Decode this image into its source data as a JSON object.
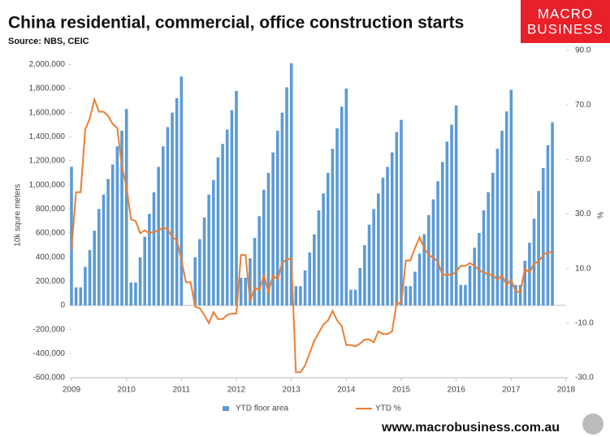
{
  "chart_data": {
    "type": "bar",
    "title": "China residential, commercial, office construction starts",
    "subtitle": "Source: NBS, CEIC",
    "logo": [
      "MACRO",
      "BUSINESS"
    ],
    "footer": "www.macrobusiness.com.au",
    "y_label": "10k squre meters",
    "y2_label": "%",
    "x": [
      2009,
      2009.0833,
      2009.1667,
      2009.25,
      2009.3333,
      2009.4167,
      2009.5,
      2009.5833,
      2009.6667,
      2009.75,
      2009.8333,
      2009.9167,
      2010,
      2010.0833,
      2010.1667,
      2010.25,
      2010.3333,
      2010.4167,
      2010.5,
      2010.5833,
      2010.6667,
      2010.75,
      2010.8333,
      2010.9167,
      2011,
      2011.0833,
      2011.1667,
      2011.25,
      2011.3333,
      2011.4167,
      2011.5,
      2011.5833,
      2011.6667,
      2011.75,
      2011.8333,
      2011.9167,
      2012,
      2012.0833,
      2012.1667,
      2012.25,
      2012.3333,
      2012.4167,
      2012.5,
      2012.5833,
      2012.6667,
      2012.75,
      2012.8333,
      2012.9167,
      2013,
      2013.0833,
      2013.1667,
      2013.25,
      2013.3333,
      2013.4167,
      2013.5,
      2013.5833,
      2013.6667,
      2013.75,
      2013.8333,
      2013.9167,
      2014,
      2014.0833,
      2014.1667,
      2014.25,
      2014.3333,
      2014.4167,
      2014.5,
      2014.5833,
      2014.6667,
      2014.75,
      2014.8333,
      2014.9167,
      2015,
      2015.0833,
      2015.1667,
      2015.25,
      2015.3333,
      2015.4167,
      2015.5,
      2015.5833,
      2015.6667,
      2015.75,
      2015.8333,
      2015.9167,
      2016,
      2016.0833,
      2016.1667,
      2016.25,
      2016.3333,
      2016.4167,
      2016.5,
      2016.5833,
      2016.6667,
      2016.75,
      2016.8333,
      2016.9167,
      2017,
      2017.0833,
      2017.1667,
      2017.25,
      2017.3333,
      2017.4167,
      2017.5,
      2017.5833,
      2017.6667,
      2017.75
    ],
    "series": [
      {
        "name": "YTD floor area",
        "type": "bar",
        "color": "#5b9bd5",
        "values": [
          1150000,
          150000,
          150000,
          320000,
          460000,
          620000,
          800000,
          920000,
          1050000,
          1170000,
          1320000,
          1450000,
          1630000,
          190000,
          190000,
          400000,
          570000,
          760000,
          940000,
          1150000,
          1320000,
          1480000,
          1600000,
          1720000,
          1900000,
          null,
          null,
          400000,
          550000,
          730000,
          920000,
          1040000,
          1230000,
          1340000,
          1460000,
          1620000,
          1780000,
          230000,
          230000,
          390000,
          560000,
          740000,
          960000,
          1100000,
          1270000,
          1450000,
          1600000,
          1810000,
          2010000,
          160000,
          160000,
          290000,
          440000,
          590000,
          790000,
          930000,
          1100000,
          1300000,
          1470000,
          1650000,
          1800000,
          130000,
          130000,
          310000,
          500000,
          670000,
          800000,
          930000,
          1060000,
          1150000,
          1270000,
          1440000,
          1540000,
          160000,
          160000,
          280000,
          430000,
          590000,
          750000,
          880000,
          1030000,
          1190000,
          1360000,
          1500000,
          1660000,
          170000,
          170000,
          330000,
          480000,
          600000,
          790000,
          940000,
          1100000,
          1300000,
          1450000,
          1610000,
          1790000,
          170000,
          170000,
          370000,
          520000,
          720000,
          950000,
          1140000,
          1330000,
          1520000
        ]
      },
      {
        "name": "YTD %",
        "type": "line",
        "axis": "y2",
        "color": "#ed7d31",
        "values": [
          17,
          38,
          38,
          61,
          65,
          72,
          67.5,
          67.5,
          66,
          63,
          61.5,
          47.5,
          40,
          28,
          27.5,
          23,
          24,
          23,
          23.5,
          24,
          25,
          24.5,
          21.5,
          20.5,
          13,
          5,
          5,
          -4,
          -4.5,
          -7,
          -10,
          -6,
          -8.5,
          -8.5,
          -7,
          -6.5,
          -6.5,
          15,
          15,
          -2,
          3,
          2,
          7.5,
          1.5,
          7.5,
          6,
          12,
          13.5,
          13.5,
          -28,
          -28,
          -25.5,
          -21,
          -16.5,
          -13.5,
          -10.5,
          -9,
          -5.5,
          -9,
          -11,
          -18,
          -18,
          -18.5,
          -17.5,
          -16,
          -16,
          -17,
          -13,
          -14,
          -14,
          -13,
          -2.5,
          -3,
          13,
          13,
          17.5,
          21.5,
          17.5,
          15,
          14,
          12.5,
          7.5,
          8,
          7.5,
          9,
          11,
          11,
          12,
          11,
          9.5,
          8.5,
          8,
          7.5,
          6,
          7.5,
          4,
          6,
          1.5,
          1.5,
          10,
          8.5,
          12,
          12.5,
          15,
          16,
          16
        ]
      }
    ],
    "xlim": [
      2009,
      2018
    ],
    "xticks": [
      2009,
      2010,
      2011,
      2012,
      2013,
      2014,
      2015,
      2016,
      2017,
      2018
    ],
    "ylim": [
      -600000,
      2117000
    ],
    "yticks": [
      {
        "value": -600000,
        "label": "-600,000"
      },
      {
        "value": -400000,
        "label": "-400,000"
      },
      {
        "value": -200000,
        "label": "-200,000"
      },
      0,
      {
        "value": 200000,
        "label": "200,000"
      },
      {
        "value": 400000,
        "label": "400,000"
      },
      {
        "value": 600000,
        "label": "600,000"
      },
      {
        "value": 800000,
        "label": "800,000"
      },
      {
        "value": 1000000,
        "label": "1,000,000"
      },
      {
        "value": 1200000,
        "label": "1,200,000"
      },
      {
        "value": 1400000,
        "label": "1,400,000"
      },
      {
        "value": 1600000,
        "label": "1,600,000"
      },
      {
        "value": 1800000,
        "label": "1,800,000"
      },
      {
        "value": 2000000,
        "label": "2,000,000"
      }
    ],
    "y2lim": [
      -30,
      90
    ],
    "y2ticks": [
      {
        "value": -30,
        "label": "-30.0"
      },
      {
        "value": -10,
        "label": "-10.0"
      },
      {
        "value": 10,
        "label": "10.0"
      },
      {
        "value": 30,
        "label": "30.0"
      },
      {
        "value": 50,
        "label": "50.0"
      },
      {
        "value": 70,
        "label": "70.0"
      },
      {
        "value": 90,
        "label": "90.0"
      }
    ],
    "grid": false,
    "legend": "bottom"
  }
}
